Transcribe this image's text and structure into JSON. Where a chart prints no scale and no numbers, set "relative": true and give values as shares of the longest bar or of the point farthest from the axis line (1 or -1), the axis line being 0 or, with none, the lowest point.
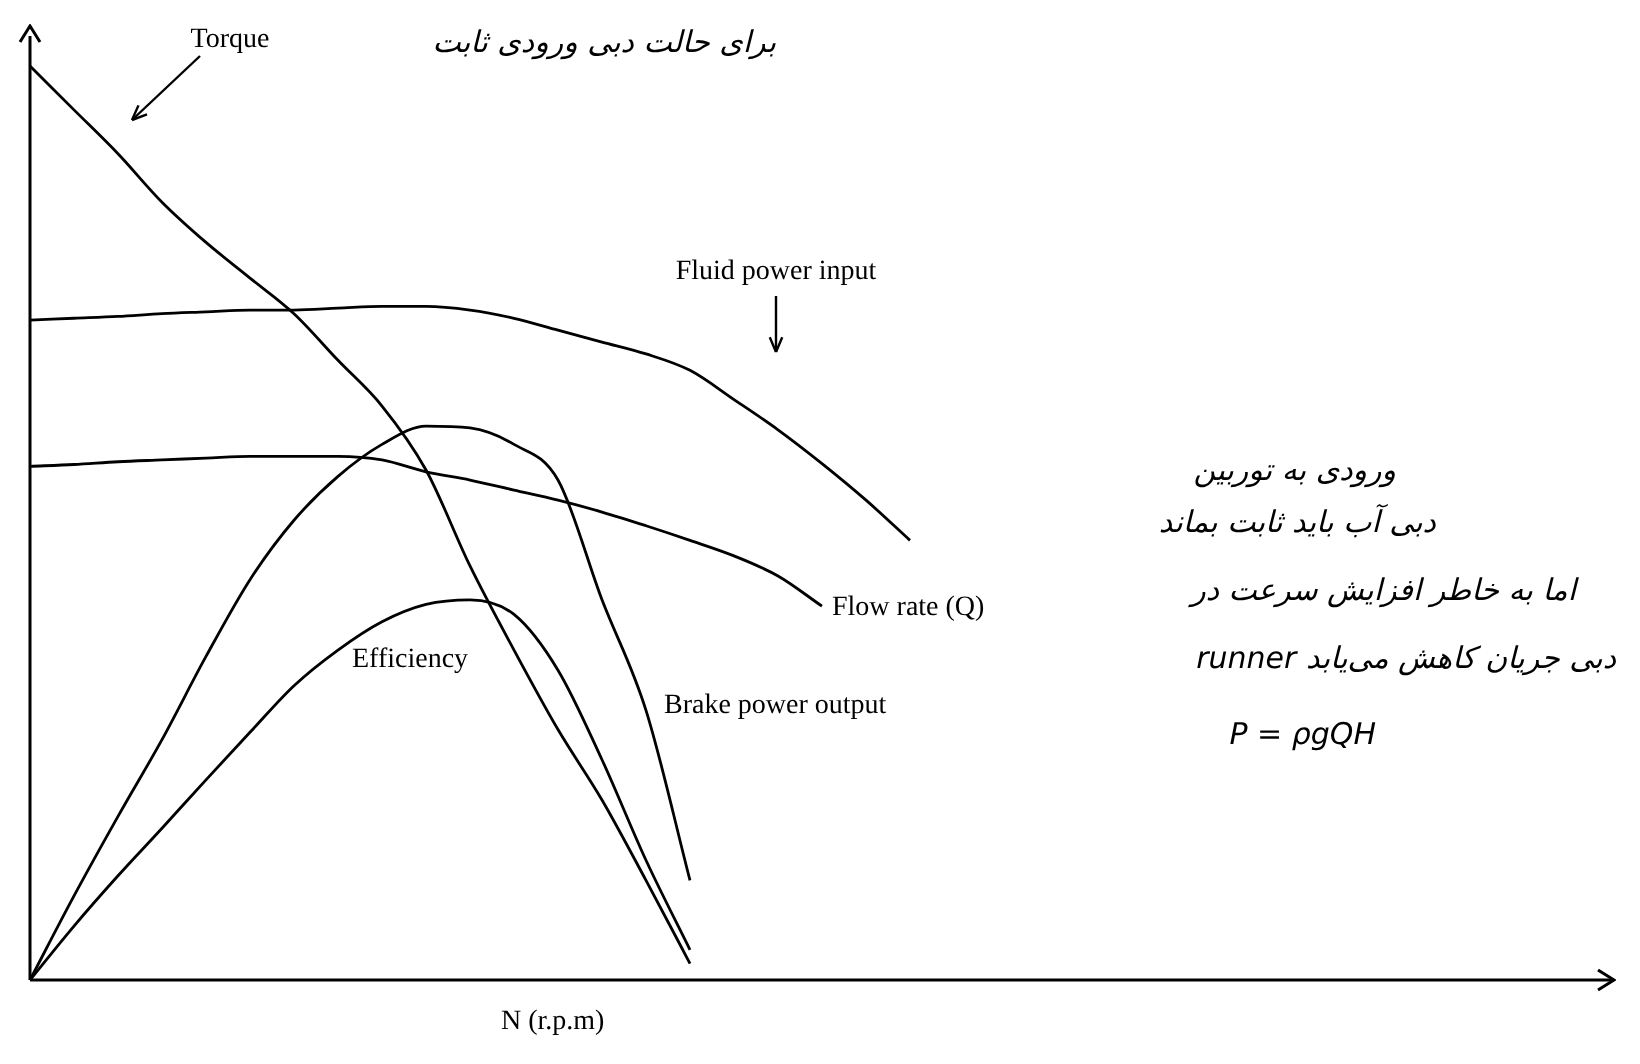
{
  "chart_data": {
    "type": "line",
    "relative": true,
    "xlabel": "N (r.p.m)",
    "grid": false,
    "legend": false,
    "tick_labels": false,
    "marker": "none",
    "line_style": "solid",
    "categories": [
      null,
      null,
      null,
      null,
      null,
      null,
      null,
      null,
      null,
      null,
      null,
      null,
      null,
      null,
      null,
      null,
      null,
      null,
      null,
      null,
      null,
      null,
      null,
      null,
      null,
      null,
      null,
      null,
      null,
      null,
      null,
      null,
      null,
      null,
      null,
      null,
      null
    ],
    "series": [
      {
        "name": "Torque",
        "color": "#000000",
        "values": [
          1.0,
          0.952,
          0.904,
          0.851,
          0.807,
          0.768,
          0.729,
          0.678,
          0.628,
          0.558,
          0.453,
          0.361,
          0.274,
          0.197,
          0.109,
          0.018,
          null,
          null,
          null,
          null,
          null,
          null,
          null,
          null,
          null,
          null,
          null,
          null,
          null,
          null,
          null,
          null,
          null,
          null,
          null,
          null,
          null
        ]
      },
      {
        "name": "Fluid power input",
        "color": "#000000",
        "values": [
          0.722,
          0.724,
          0.726,
          0.729,
          0.731,
          0.733,
          0.733,
          0.735,
          0.737,
          0.737,
          0.733,
          0.724,
          0.711,
          0.698,
          0.685,
          0.667,
          0.635,
          0.602,
          0.565,
          0.525,
          0.481,
          null,
          null,
          null,
          null,
          null,
          null,
          null,
          null,
          null,
          null,
          null,
          null,
          null,
          null,
          null,
          null
        ]
      },
      {
        "name": "Flow rate (Q)",
        "color": "#000000",
        "values": [
          0.562,
          0.564,
          0.567,
          0.569,
          0.571,
          0.573,
          0.573,
          0.573,
          0.569,
          0.556,
          0.547,
          0.536,
          0.525,
          0.512,
          0.497,
          0.481,
          0.464,
          0.442,
          0.409,
          null,
          null,
          null,
          null,
          null,
          null,
          null,
          null,
          null,
          null,
          null,
          null,
          null,
          null,
          null,
          null,
          null,
          null
        ]
      },
      {
        "name": "Brake power output",
        "color": "#000000",
        "values": [
          0,
          0.092,
          0.179,
          0.263,
          0.354,
          0.438,
          0.503,
          0.551,
          0.586,
          0.606,
          0.604,
          0.586,
          0.547,
          0.416,
          0.295,
          0.109,
          null,
          null,
          null,
          null,
          null,
          null,
          null,
          null,
          null,
          null,
          null,
          null,
          null,
          null,
          null,
          null,
          null,
          null,
          null,
          null,
          null
        ]
      },
      {
        "name": "Efficiency",
        "color": "#000000",
        "values": [
          0,
          0.059,
          0.114,
          0.166,
          0.219,
          0.271,
          0.322,
          0.361,
          0.392,
          0.411,
          0.416,
          0.4,
          0.339,
          0.241,
          0.131,
          0.033,
          null,
          null,
          null,
          null,
          null,
          null,
          null,
          null,
          null,
          null,
          null,
          null,
          null,
          null,
          null,
          null,
          null,
          null,
          null,
          null,
          null
        ]
      }
    ],
    "annotations": [
      "برای حالت دبی ورودی ثابت",
      "ورودی به توربین",
      "دبی آب باید ثابت بماند",
      "اما به خاطر افزایش سرعت در",
      "runner دبی جریان کاهش می‌یابد",
      "P = ρgQH"
    ]
  }
}
